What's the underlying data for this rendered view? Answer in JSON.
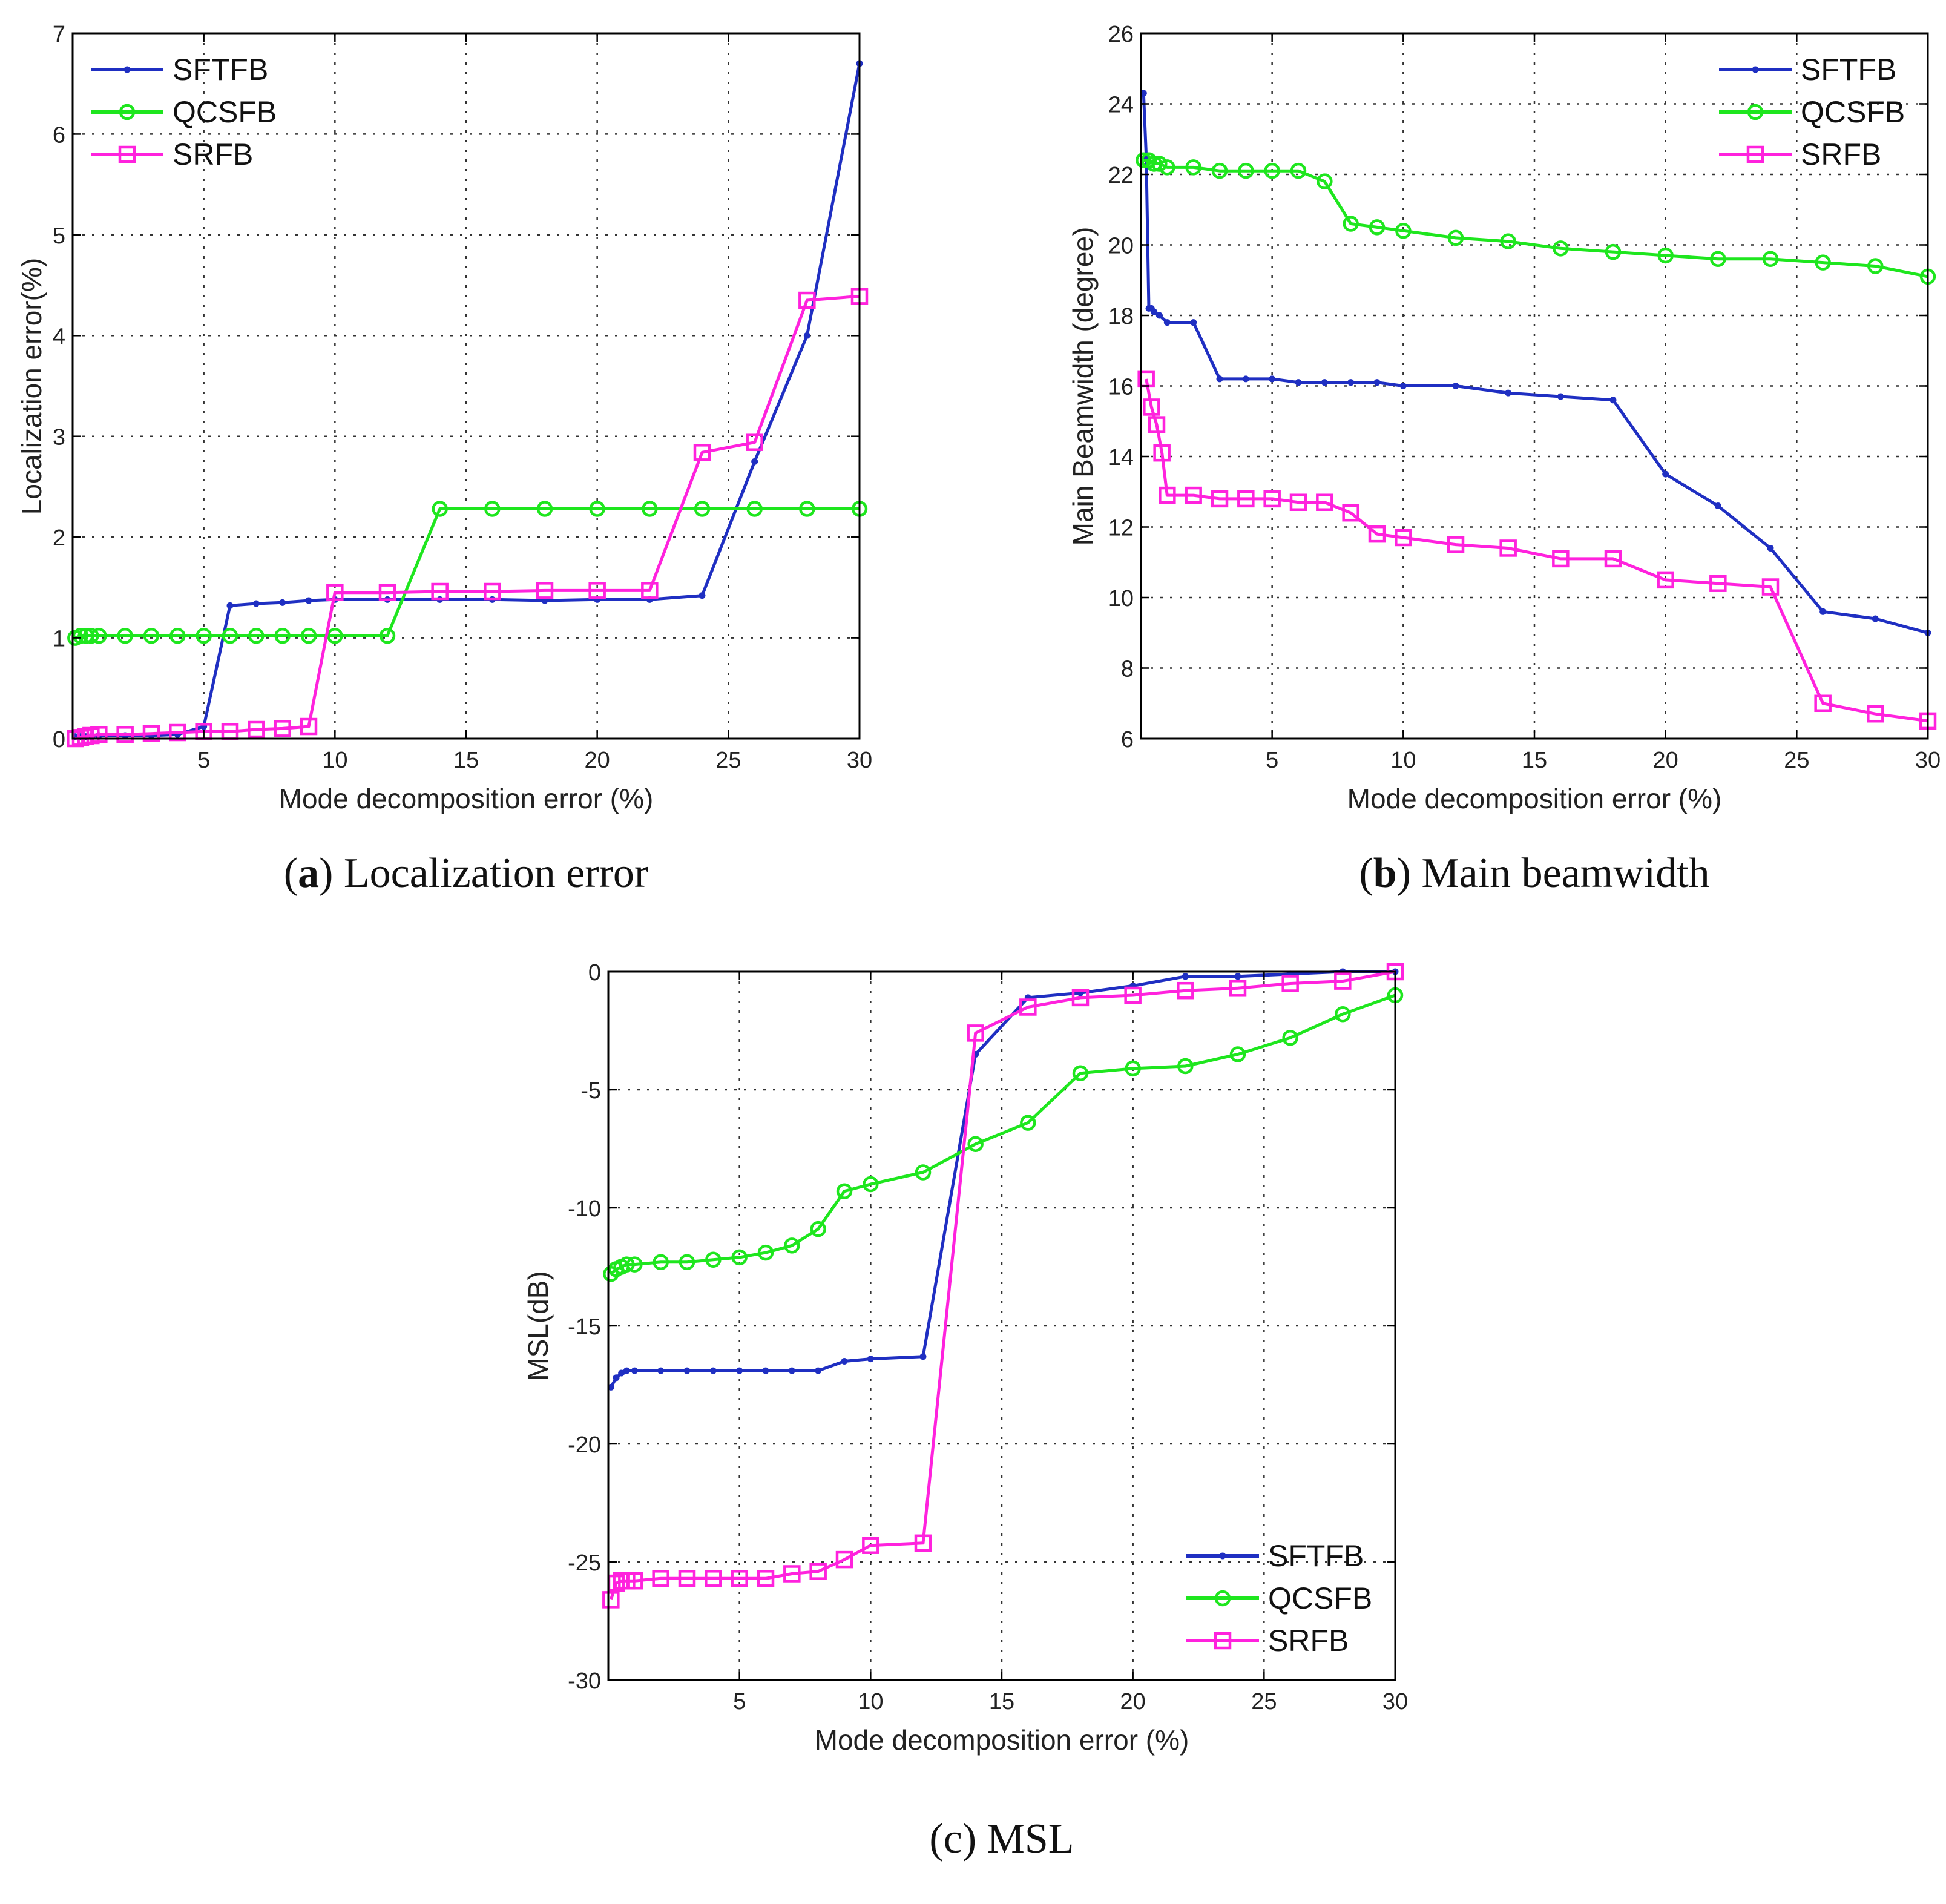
{
  "figure": {
    "panels": [
      {
        "caption_letter": "a",
        "caption_text": "Localization error"
      },
      {
        "caption_letter": "b",
        "caption_text": "Main beamwidth"
      },
      {
        "caption_letter": "c",
        "caption_text": "MSL"
      }
    ]
  },
  "colors": {
    "SFTFB": "#1f2fc2",
    "QCSFB": "#1ee61e",
    "SRFB": "#ff22dd"
  },
  "chart_data": [
    {
      "type": "line",
      "title": "",
      "xlabel": "Mode decomposition error (%)",
      "ylabel": "Localization error(%)",
      "xlim": [
        0,
        30
      ],
      "ylim": [
        0,
        7
      ],
      "xticks": [
        5,
        10,
        15,
        20,
        25,
        30
      ],
      "yticks": [
        0,
        1,
        2,
        3,
        4,
        5,
        6,
        7
      ],
      "grid": true,
      "legend_position": "top-left",
      "series": [
        {
          "name": "SFTFB",
          "marker": "point",
          "x": [
            0.1,
            0.3,
            0.5,
            0.7,
            1,
            2,
            3,
            4,
            5,
            6,
            7,
            8,
            9,
            10,
            12,
            14,
            16,
            18,
            20,
            22,
            24,
            26,
            28,
            30
          ],
          "y": [
            0.02,
            0.02,
            0.02,
            0.02,
            0.03,
            0.03,
            0.03,
            0.04,
            0.12,
            1.32,
            1.34,
            1.35,
            1.37,
            1.38,
            1.38,
            1.38,
            1.38,
            1.37,
            1.38,
            1.38,
            1.42,
            2.75,
            4.0,
            6.7
          ]
        },
        {
          "name": "QCSFB",
          "marker": "circle",
          "x": [
            0.1,
            0.3,
            0.5,
            0.7,
            1,
            2,
            3,
            4,
            5,
            6,
            7,
            8,
            9,
            10,
            12,
            14,
            16,
            18,
            20,
            22,
            24,
            26,
            28,
            30
          ],
          "y": [
            1.0,
            1.02,
            1.02,
            1.02,
            1.02,
            1.02,
            1.02,
            1.02,
            1.02,
            1.02,
            1.02,
            1.02,
            1.02,
            1.02,
            1.02,
            2.28,
            2.28,
            2.28,
            2.28,
            2.28,
            2.28,
            2.28,
            2.28,
            2.28
          ]
        },
        {
          "name": "SRFB",
          "marker": "square",
          "x": [
            0.1,
            0.3,
            0.5,
            0.7,
            1,
            2,
            3,
            4,
            5,
            6,
            7,
            8,
            9,
            10,
            12,
            14,
            16,
            18,
            20,
            22,
            24,
            26,
            28,
            30
          ],
          "y": [
            0.0,
            0.01,
            0.02,
            0.03,
            0.04,
            0.04,
            0.05,
            0.06,
            0.07,
            0.07,
            0.09,
            0.1,
            0.12,
            1.45,
            1.45,
            1.46,
            1.46,
            1.47,
            1.47,
            1.47,
            2.84,
            2.94,
            4.35,
            4.39
          ]
        }
      ]
    },
    {
      "type": "line",
      "title": "",
      "xlabel": "Mode decomposition error (%)",
      "ylabel": "Main Beamwidth (degree)",
      "xlim": [
        0,
        30
      ],
      "ylim": [
        6,
        26
      ],
      "xticks": [
        5,
        10,
        15,
        20,
        25,
        30
      ],
      "yticks": [
        6,
        8,
        10,
        12,
        14,
        16,
        18,
        20,
        22,
        24,
        26
      ],
      "grid": true,
      "legend_position": "top-right",
      "series": [
        {
          "name": "SFTFB",
          "marker": "point",
          "x": [
            0.1,
            0.2,
            0.3,
            0.4,
            0.5,
            0.7,
            1,
            2,
            3,
            4,
            5,
            6,
            7,
            8,
            9,
            10,
            12,
            14,
            16,
            18,
            20,
            22,
            24,
            26,
            28,
            30
          ],
          "y": [
            24.3,
            22.5,
            18.2,
            18.2,
            18.1,
            18.0,
            17.8,
            17.8,
            16.2,
            16.2,
            16.2,
            16.1,
            16.1,
            16.1,
            16.1,
            16.0,
            16.0,
            15.8,
            15.7,
            15.6,
            13.5,
            12.6,
            11.4,
            9.6,
            9.4,
            9.0
          ]
        },
        {
          "name": "QCSFB",
          "marker": "circle",
          "x": [
            0.1,
            0.3,
            0.5,
            0.7,
            1,
            2,
            3,
            4,
            5,
            6,
            7,
            8,
            9,
            10,
            12,
            14,
            16,
            18,
            20,
            22,
            24,
            26,
            28,
            30
          ],
          "y": [
            22.4,
            22.4,
            22.3,
            22.3,
            22.2,
            22.2,
            22.1,
            22.1,
            22.1,
            22.1,
            21.8,
            20.6,
            20.5,
            20.4,
            20.2,
            20.1,
            19.9,
            19.8,
            19.7,
            19.6,
            19.6,
            19.5,
            19.4,
            19.1
          ]
        },
        {
          "name": "SRFB",
          "marker": "square",
          "x": [
            0.2,
            0.4,
            0.6,
            0.8,
            1,
            2,
            3,
            4,
            5,
            6,
            7,
            8,
            9,
            10,
            12,
            14,
            16,
            18,
            20,
            22,
            24,
            26,
            28,
            30
          ],
          "y": [
            16.2,
            15.4,
            14.9,
            14.1,
            12.9,
            12.9,
            12.8,
            12.8,
            12.8,
            12.7,
            12.7,
            12.4,
            11.8,
            11.7,
            11.5,
            11.4,
            11.1,
            11.1,
            10.5,
            10.4,
            10.3,
            7.0,
            6.7,
            6.5
          ]
        }
      ]
    },
    {
      "type": "line",
      "title": "",
      "xlabel": "Mode decomposition error (%)",
      "ylabel": "MSL(dB)",
      "xlim": [
        0,
        30
      ],
      "ylim": [
        -30,
        0
      ],
      "xticks": [
        5,
        10,
        15,
        20,
        25,
        30
      ],
      "yticks": [
        -30,
        -25,
        -20,
        -15,
        -10,
        -5,
        0
      ],
      "grid": true,
      "legend_position": "bottom-right",
      "series": [
        {
          "name": "SFTFB",
          "marker": "point",
          "x": [
            0.1,
            0.3,
            0.5,
            0.7,
            1,
            2,
            3,
            4,
            5,
            6,
            7,
            8,
            9,
            10,
            12,
            14,
            16,
            18,
            20,
            22,
            24,
            26,
            28,
            30
          ],
          "y": [
            -17.6,
            -17.2,
            -17.0,
            -16.9,
            -16.9,
            -16.9,
            -16.9,
            -16.9,
            -16.9,
            -16.9,
            -16.9,
            -16.9,
            -16.5,
            -16.4,
            -16.3,
            -3.5,
            -1.1,
            -0.9,
            -0.6,
            -0.2,
            -0.2,
            -0.1,
            0.0,
            0.0
          ]
        },
        {
          "name": "QCSFB",
          "marker": "circle",
          "x": [
            0.1,
            0.3,
            0.5,
            0.7,
            1,
            2,
            3,
            4,
            5,
            6,
            7,
            8,
            9,
            10,
            12,
            14,
            16,
            18,
            20,
            22,
            24,
            26,
            28,
            30
          ],
          "y": [
            -12.8,
            -12.6,
            -12.5,
            -12.4,
            -12.4,
            -12.3,
            -12.3,
            -12.2,
            -12.1,
            -11.9,
            -11.6,
            -10.9,
            -9.3,
            -9.0,
            -8.5,
            -7.3,
            -6.4,
            -4.3,
            -4.1,
            -4.0,
            -3.5,
            -2.8,
            -1.8,
            -1.0
          ]
        },
        {
          "name": "SRFB",
          "marker": "square",
          "x": [
            0.1,
            0.3,
            0.5,
            0.7,
            1,
            2,
            3,
            4,
            5,
            6,
            7,
            8,
            9,
            10,
            12,
            14,
            16,
            18,
            20,
            22,
            24,
            26,
            28,
            30
          ],
          "y": [
            -26.6,
            -25.9,
            -25.8,
            -25.8,
            -25.8,
            -25.7,
            -25.7,
            -25.7,
            -25.7,
            -25.7,
            -25.5,
            -25.4,
            -24.9,
            -24.3,
            -24.2,
            -2.6,
            -1.5,
            -1.1,
            -1.0,
            -0.8,
            -0.7,
            -0.5,
            -0.4,
            0.0
          ]
        }
      ]
    }
  ]
}
